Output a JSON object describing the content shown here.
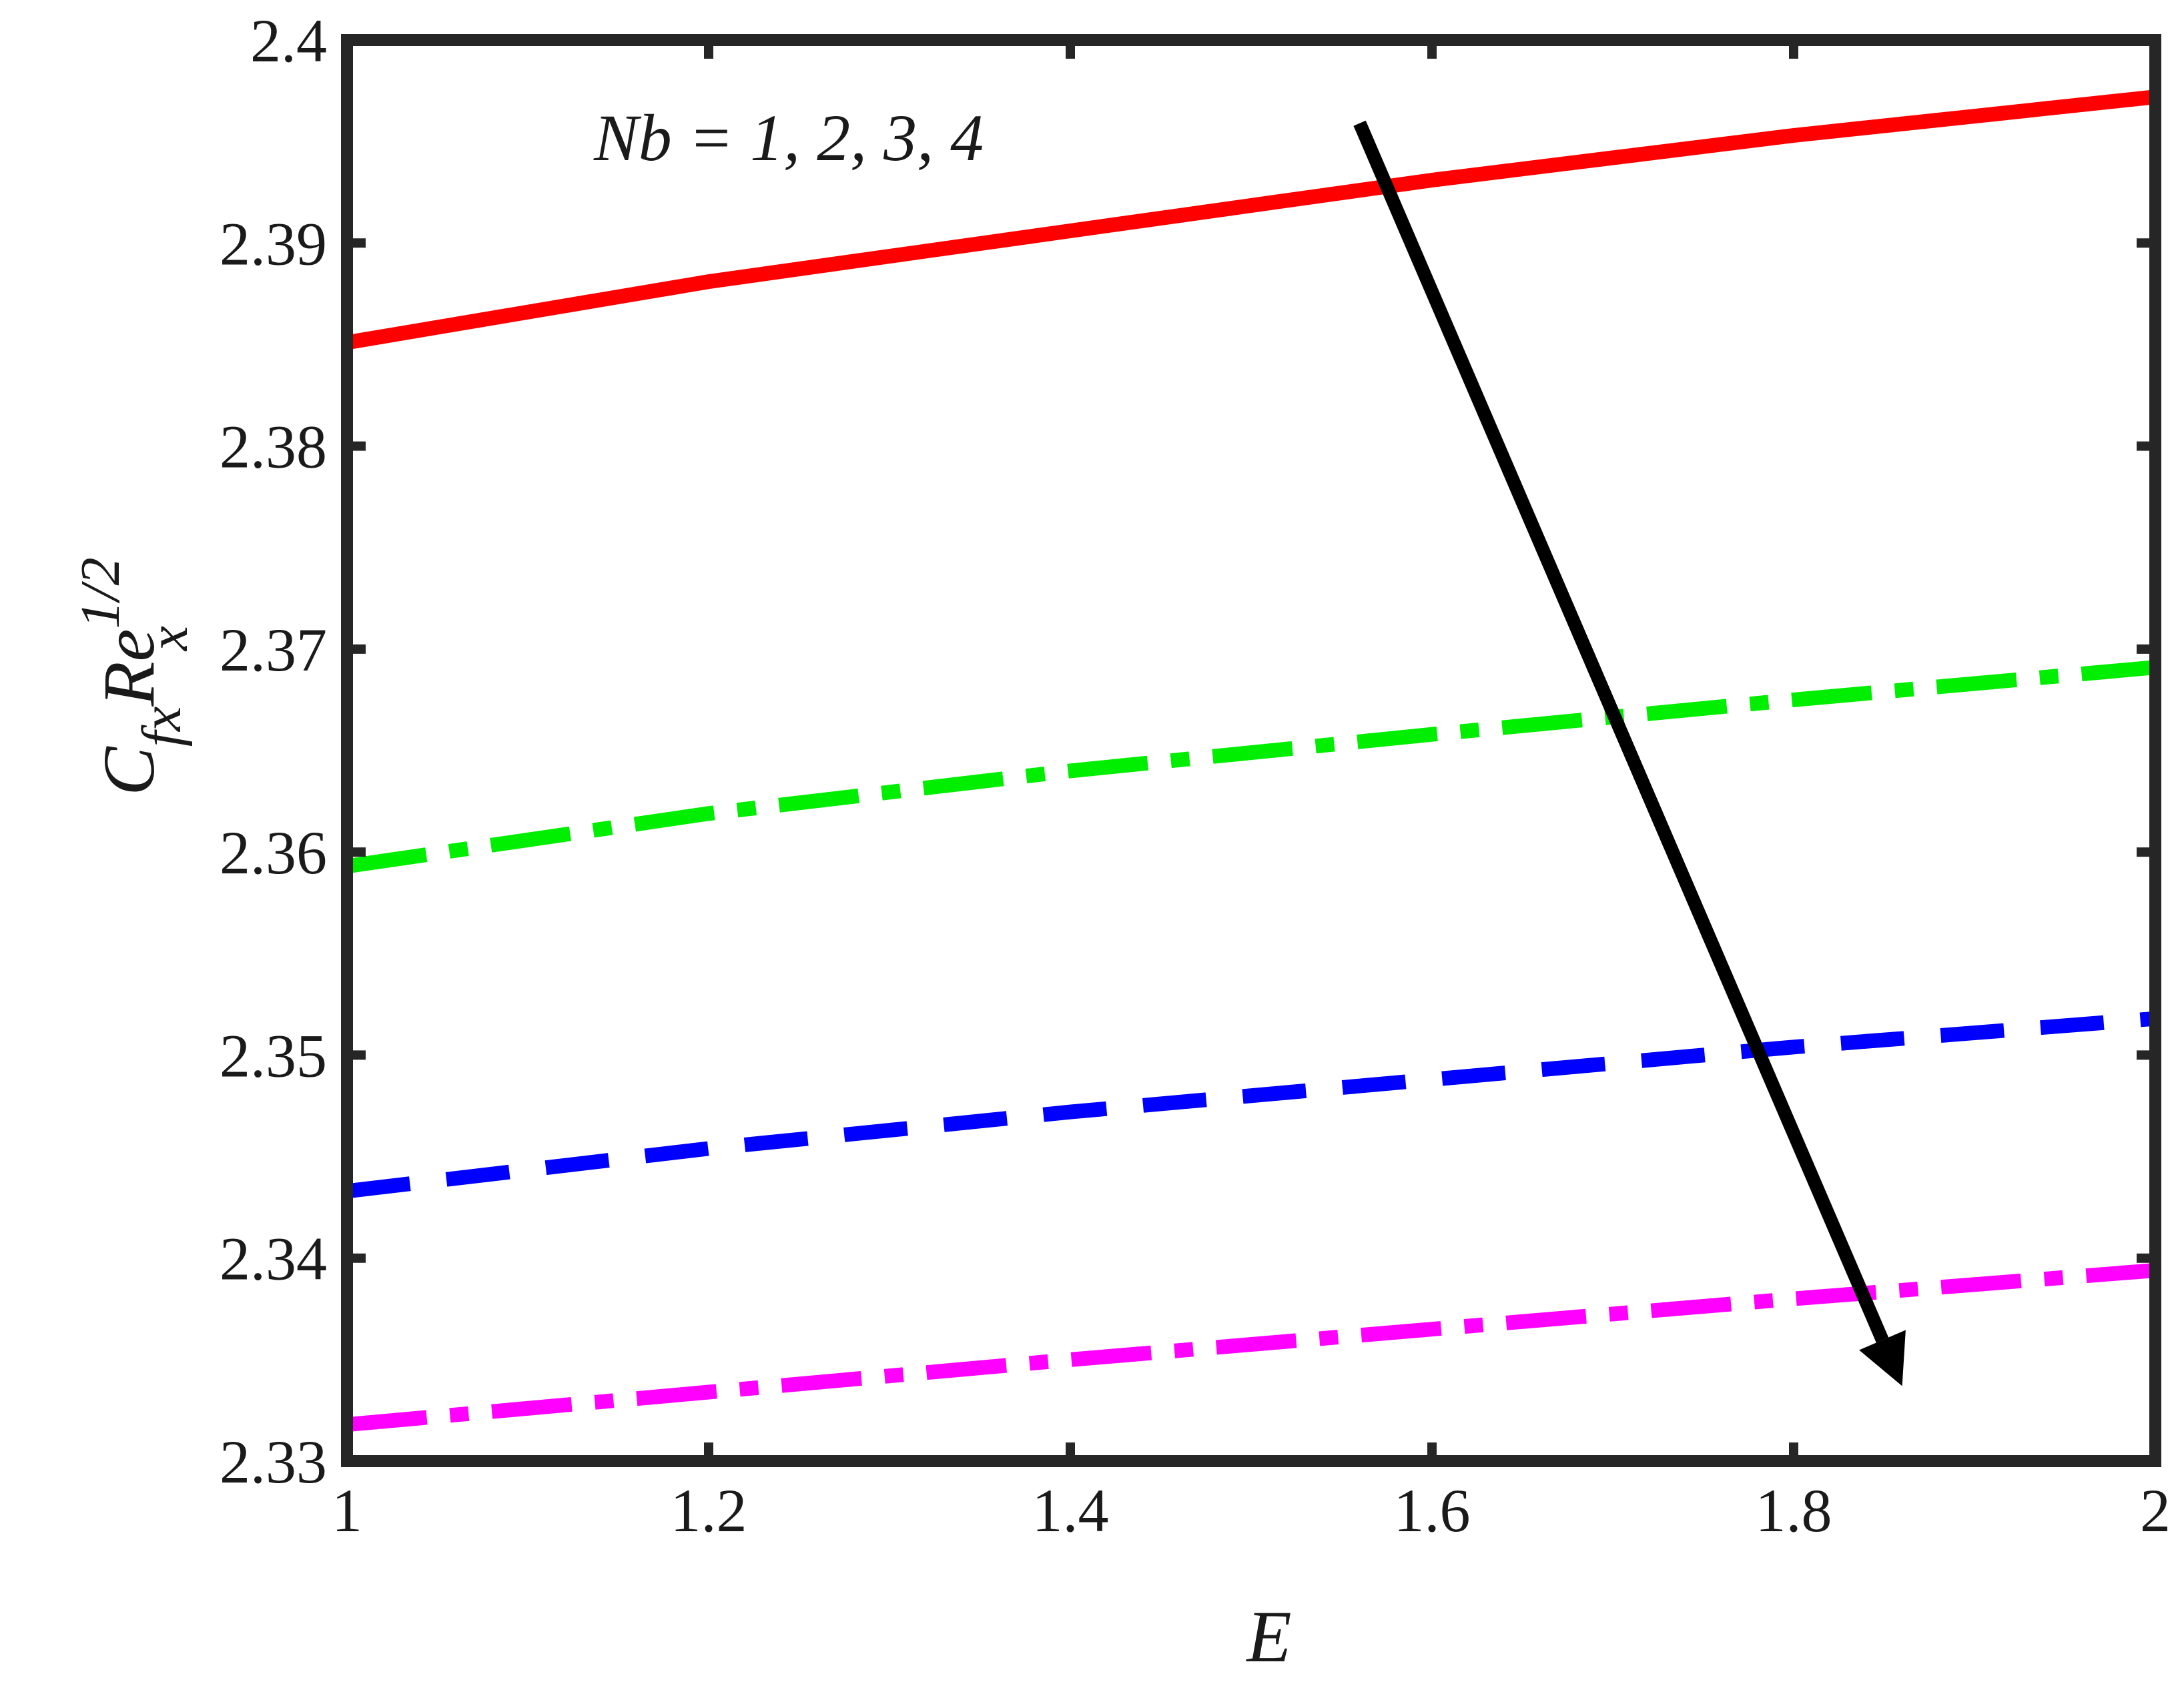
{
  "chart_data": {
    "type": "line",
    "xlabel": "E",
    "ylabel": {
      "main_c": "C",
      "sub_fx": "fx",
      "main_re": "Re",
      "sup": "1/2",
      "sub_x": "x"
    },
    "xlim": [
      1,
      2
    ],
    "ylim": [
      2.33,
      2.4
    ],
    "xticks": [
      1,
      1.2,
      1.4,
      1.6,
      1.8,
      2
    ],
    "xtick_labels": [
      "1",
      "1.2",
      "1.4",
      "1.6",
      "1.8",
      "2"
    ],
    "yticks": [
      2.33,
      2.34,
      2.35,
      2.36,
      2.37,
      2.38,
      2.39,
      2.4
    ],
    "ytick_labels": [
      "2.33",
      "2.34",
      "2.35",
      "2.36",
      "2.37",
      "2.38",
      "2.39",
      "2.4"
    ],
    "grid": false,
    "x": [
      1,
      1.2,
      1.4,
      1.6,
      1.8,
      2
    ],
    "series": [
      {
        "values": [
          2.3851,
          2.3881,
          2.3906,
          2.3931,
          2.3953,
          2.3972
        ],
        "color": "#ff0000",
        "style": "solid"
      },
      {
        "values": [
          2.3593,
          2.3619,
          2.364,
          2.3658,
          2.3675,
          2.3691
        ],
        "color": "#00ee00",
        "style": "dash-dot"
      },
      {
        "values": [
          2.3433,
          2.3454,
          2.3472,
          2.3488,
          2.3504,
          2.3518
        ],
        "color": "#0000ff",
        "style": "dashed"
      },
      {
        "values": [
          2.3318,
          2.3334,
          2.335,
          2.3365,
          2.338,
          2.3394
        ],
        "color": "#ff00ff",
        "style": "dash-dot"
      }
    ],
    "annotation": {
      "text": "Nb = 1, 2, 3, 4",
      "arrow_from": [
        1.56,
        2.3959
      ],
      "arrow_to": [
        1.86,
        2.3337
      ]
    }
  }
}
